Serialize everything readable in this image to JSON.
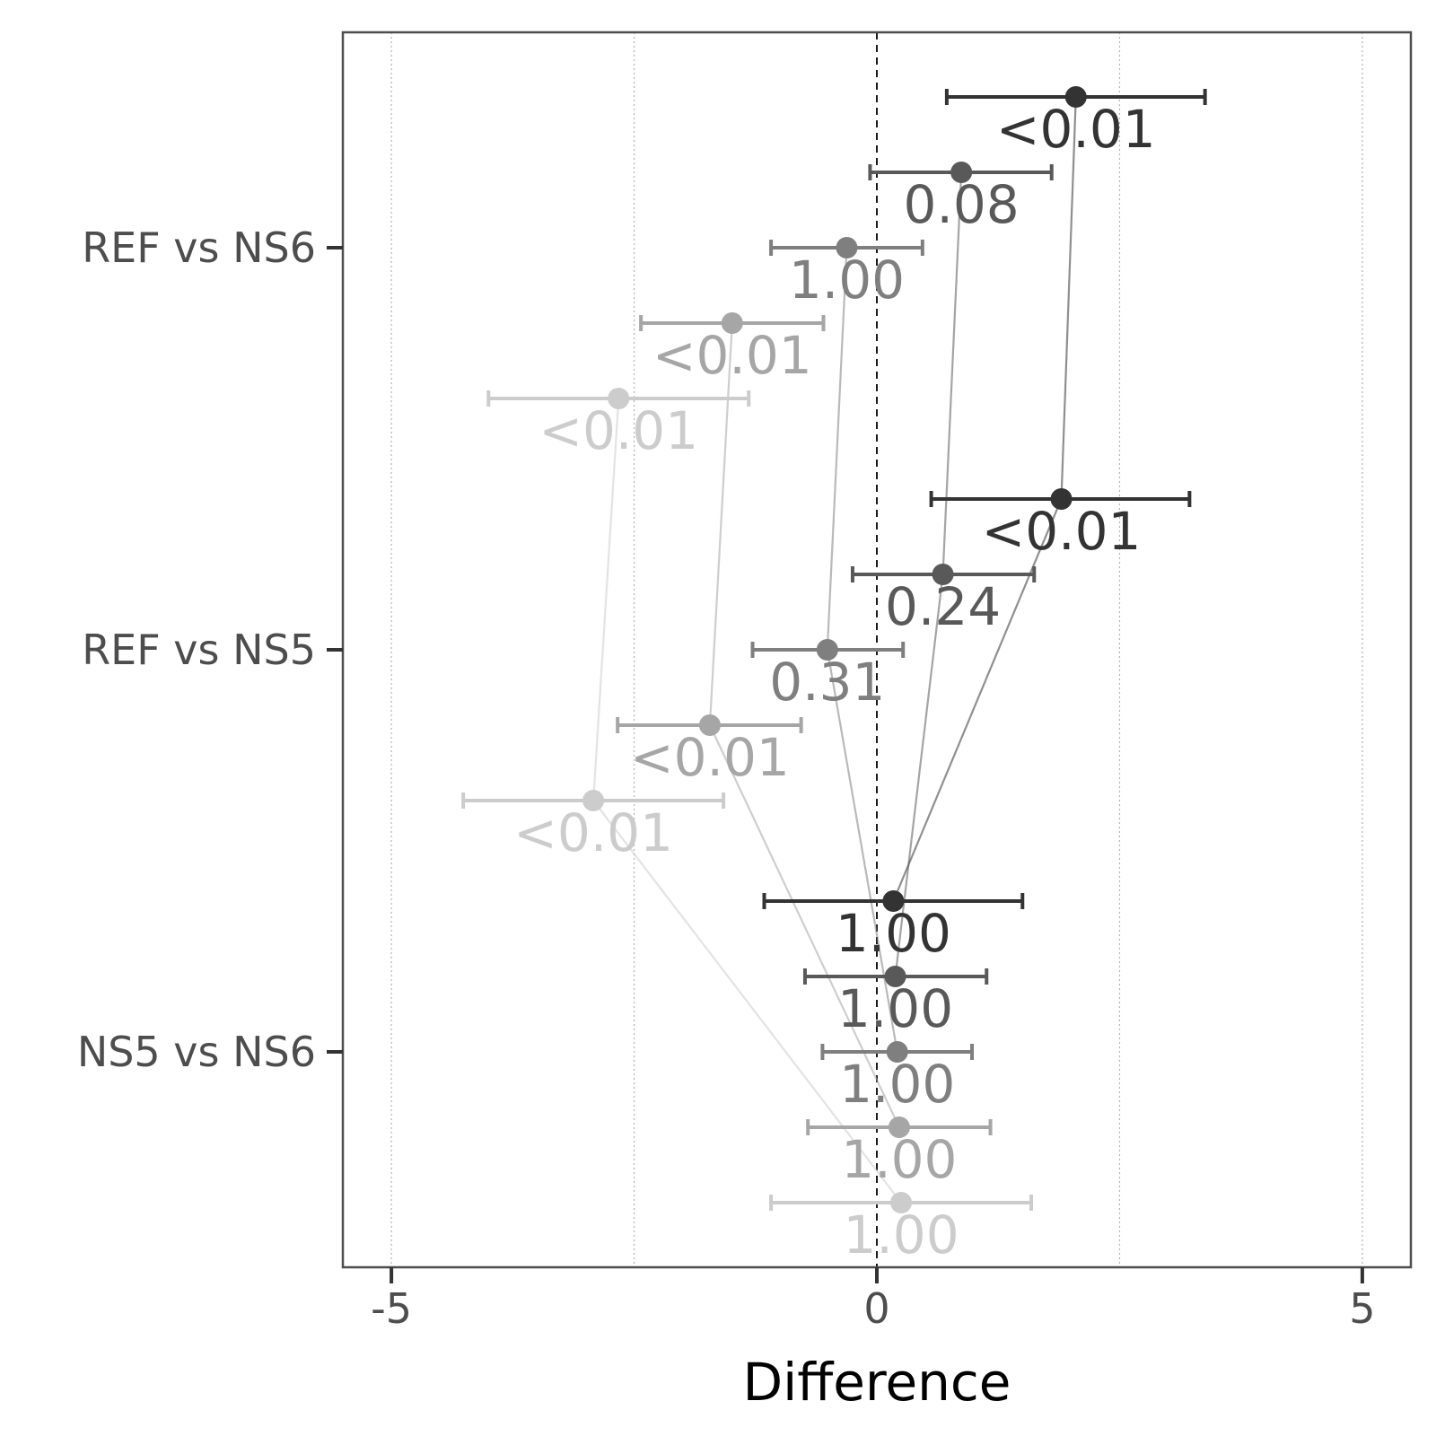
{
  "chart_data": {
    "type": "forest",
    "xlabel": "Difference",
    "xlim": [
      -5.5,
      5.5
    ],
    "x_ticks": [
      -5,
      0,
      5
    ],
    "x_tick_labels": [
      "-5",
      "0",
      "5"
    ],
    "x_minor_grid": [
      -2.5,
      2.5
    ],
    "reference_line": 0,
    "categories": [
      "REF vs NS6",
      "REF vs NS5",
      "NS5 vs NS6"
    ],
    "grid": true,
    "series": [
      {
        "color": "#333333",
        "points": [
          {
            "category": "REF vs NS6",
            "estimate": 2.05,
            "lower": 0.72,
            "upper": 3.38,
            "label": "<0.01"
          },
          {
            "category": "REF vs NS5",
            "estimate": 1.9,
            "lower": 0.56,
            "upper": 3.22,
            "label": "<0.01"
          },
          {
            "category": "NS5 vs NS6",
            "estimate": 0.17,
            "lower": -1.16,
            "upper": 1.5,
            "label": "1.00"
          }
        ]
      },
      {
        "color": "#595959",
        "points": [
          {
            "category": "REF vs NS6",
            "estimate": 0.87,
            "lower": -0.07,
            "upper": 1.8,
            "label": "0.08"
          },
          {
            "category": "REF vs NS5",
            "estimate": 0.68,
            "lower": -0.25,
            "upper": 1.62,
            "label": "0.24"
          },
          {
            "category": "NS5 vs NS6",
            "estimate": 0.19,
            "lower": -0.74,
            "upper": 1.13,
            "label": "1.00"
          }
        ]
      },
      {
        "color": "#7f7f7f",
        "points": [
          {
            "category": "REF vs NS6",
            "estimate": -0.31,
            "lower": -1.09,
            "upper": 0.47,
            "label": "1.00"
          },
          {
            "category": "REF vs NS5",
            "estimate": -0.51,
            "lower": -1.28,
            "upper": 0.27,
            "label": "0.31"
          },
          {
            "category": "NS5 vs NS6",
            "estimate": 0.21,
            "lower": -0.56,
            "upper": 0.98,
            "label": "1.00"
          }
        ]
      },
      {
        "color": "#a6a6a6",
        "points": [
          {
            "category": "REF vs NS6",
            "estimate": -1.49,
            "lower": -2.43,
            "upper": -0.55,
            "label": "<0.01"
          },
          {
            "category": "REF vs NS5",
            "estimate": -1.72,
            "lower": -2.67,
            "upper": -0.78,
            "label": "<0.01"
          },
          {
            "category": "NS5 vs NS6",
            "estimate": 0.23,
            "lower": -0.71,
            "upper": 1.17,
            "label": "1.00"
          }
        ]
      },
      {
        "color": "#cccccc",
        "points": [
          {
            "category": "REF vs NS6",
            "estimate": -2.66,
            "lower": -4.0,
            "upper": -1.32,
            "label": "<0.01"
          },
          {
            "category": "REF vs NS5",
            "estimate": -2.92,
            "lower": -4.26,
            "upper": -1.58,
            "label": "<0.01"
          },
          {
            "category": "NS5 vs NS6",
            "estimate": 0.25,
            "lower": -1.09,
            "upper": 1.59,
            "label": "1.00"
          }
        ]
      }
    ]
  }
}
